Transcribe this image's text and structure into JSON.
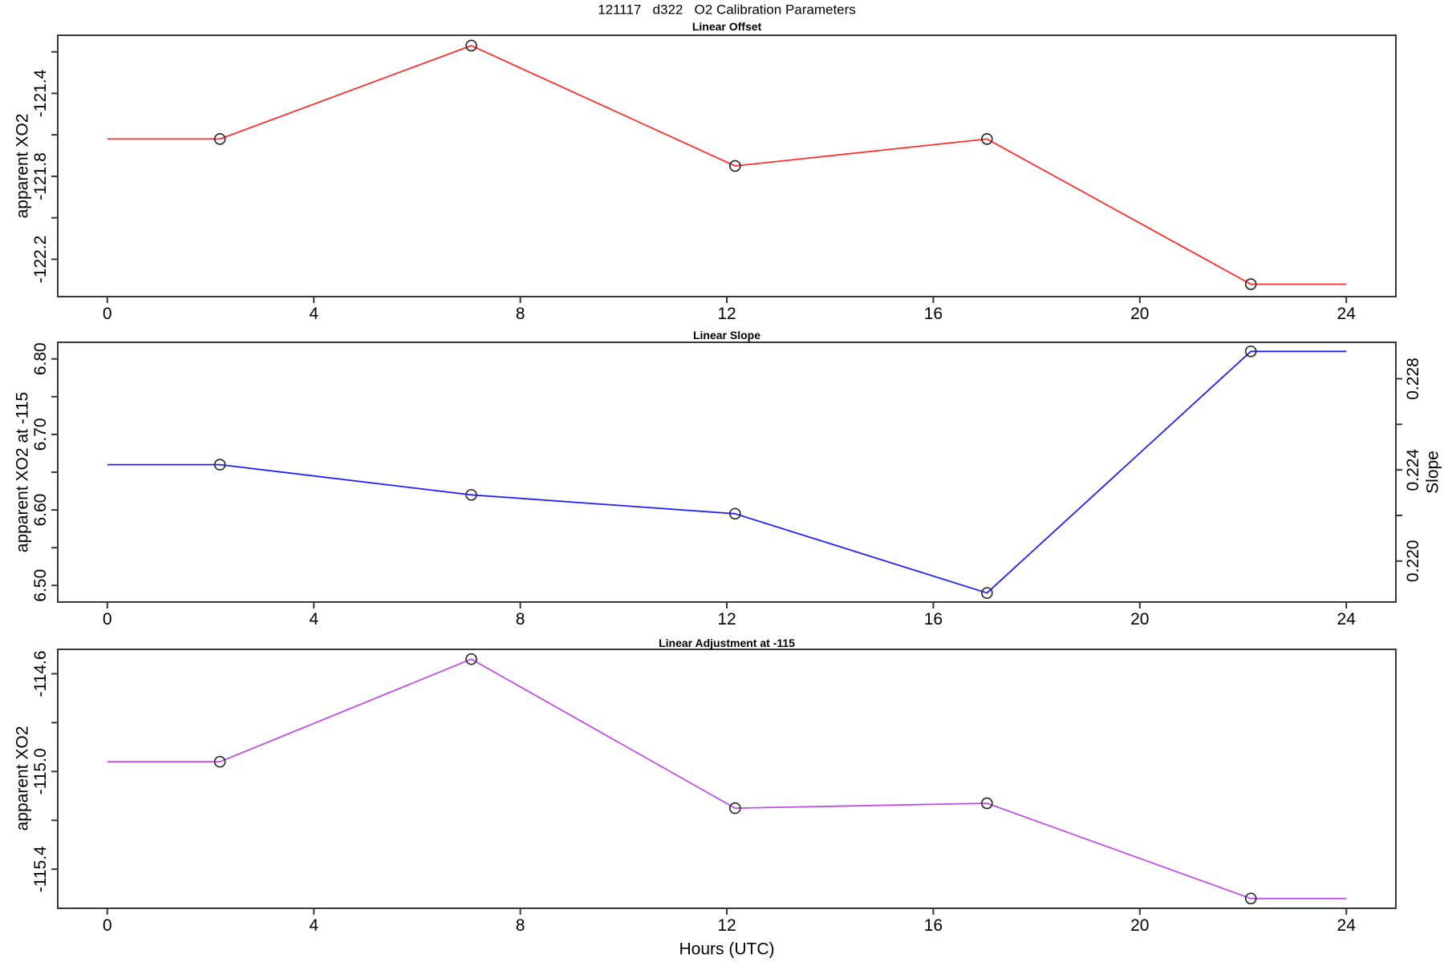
{
  "figure": {
    "title": "121117   d322   O2 Calibration Parameters"
  },
  "x_axis": {
    "label": "Hours (UTC)",
    "ticks": [
      0,
      4,
      8,
      12,
      16,
      20,
      24
    ],
    "xlim": [
      -0.96,
      24.96
    ]
  },
  "chart_data": [
    {
      "type": "line",
      "title": "Linear Offset",
      "ylabel": "apparent XO2",
      "line_color": "#ff2e2e",
      "marker_color": "#2e2e2e",
      "x": [
        0,
        2.18,
        7.05,
        12.16,
        17.04,
        22.15,
        24
      ],
      "values": [
        -121.62,
        -121.62,
        -121.17,
        -121.75,
        -121.62,
        -122.32,
        -122.32
      ],
      "marker_indices": [
        1,
        2,
        3,
        4,
        5
      ],
      "ylim": [
        -122.38,
        -121.12
      ],
      "yticks": [
        {
          "v": -121.2,
          "label": ""
        },
        {
          "v": -121.4,
          "label": "-121.4"
        },
        {
          "v": -121.6,
          "label": ""
        },
        {
          "v": -121.8,
          "label": "-121.8"
        },
        {
          "v": -122.0,
          "label": ""
        },
        {
          "v": -122.2,
          "label": "-122.2"
        }
      ]
    },
    {
      "type": "line",
      "title": "Linear Slope",
      "ylabel": "apparent XO2 at -115",
      "ylabel_right": "Slope",
      "line_color": "#1f1fff",
      "marker_color": "#2e2e2e",
      "x": [
        0,
        2.18,
        7.05,
        12.16,
        17.04,
        22.15,
        24
      ],
      "values": [
        6.66,
        6.66,
        6.62,
        6.595,
        6.49,
        6.81,
        6.81
      ],
      "slope_values_right_axis": [
        0.2242,
        0.2242,
        0.2228,
        0.2221,
        0.2186,
        0.2291,
        0.2291
      ],
      "marker_indices": [
        1,
        2,
        3,
        4,
        5
      ],
      "ylim": [
        6.478,
        6.822
      ],
      "yticks": [
        {
          "v": 6.8,
          "label": "6.80"
        },
        {
          "v": 6.75,
          "label": ""
        },
        {
          "v": 6.7,
          "label": "6.70"
        },
        {
          "v": 6.65,
          "label": ""
        },
        {
          "v": 6.6,
          "label": "6.60"
        },
        {
          "v": 6.55,
          "label": ""
        },
        {
          "v": 6.5,
          "label": "6.50"
        }
      ],
      "right_axis": {
        "ylim": [
          0.2182,
          0.2296
        ],
        "yticks": [
          {
            "v": 0.228,
            "label": "0.228"
          },
          {
            "v": 0.226,
            "label": ""
          },
          {
            "v": 0.224,
            "label": "0.224"
          },
          {
            "v": 0.222,
            "label": ""
          },
          {
            "v": 0.22,
            "label": "0.220"
          }
        ]
      }
    },
    {
      "type": "line",
      "title": "Linear Adjustment at -115",
      "ylabel": "apparent XO2",
      "line_color": "#bf4fe9",
      "marker_color": "#2e2e2e",
      "x": [
        0,
        2.18,
        7.05,
        12.16,
        17.04,
        22.15,
        24
      ],
      "values": [
        -114.96,
        -114.96,
        -114.54,
        -115.15,
        -115.13,
        -115.52,
        -115.52
      ],
      "marker_indices": [
        1,
        2,
        3,
        4,
        5
      ],
      "ylim": [
        -115.56,
        -114.5
      ],
      "yticks": [
        {
          "v": -114.6,
          "label": "-114.6"
        },
        {
          "v": -114.8,
          "label": ""
        },
        {
          "v": -115.0,
          "label": "-115.0"
        },
        {
          "v": -115.2,
          "label": ""
        },
        {
          "v": -115.4,
          "label": "-115.4"
        }
      ]
    }
  ]
}
